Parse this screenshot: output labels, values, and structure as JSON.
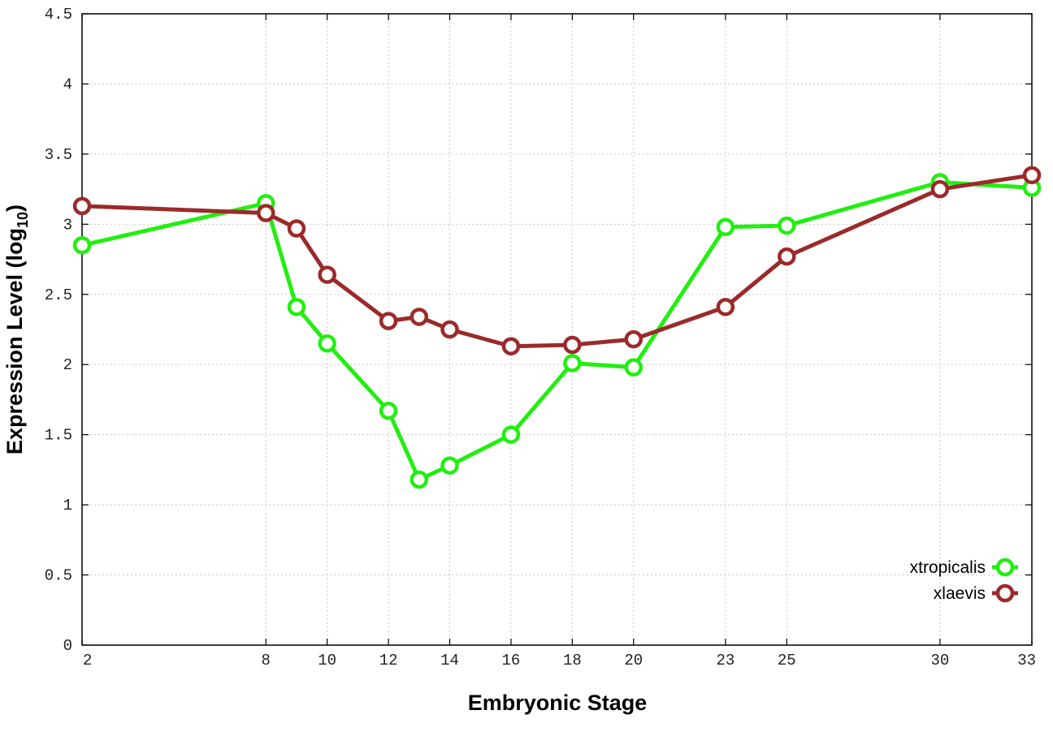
{
  "chart_data": {
    "type": "line",
    "xlabel": "Embryonic Stage",
    "ylabel_main": "Expression Level (log",
    "ylabel_sub": "10",
    "ylabel_close": ")",
    "ylim": [
      0,
      4.5
    ],
    "yticks": [
      0,
      0.5,
      1,
      1.5,
      2,
      2.5,
      3,
      3.5,
      4,
      4.5
    ],
    "ytick_labels": [
      "0",
      "0.5",
      "1",
      "1.5",
      "2",
      "2.5",
      "3",
      "3.5",
      "4",
      "4.5"
    ],
    "xlim": [
      2,
      33
    ],
    "xticks": [
      2,
      8,
      10,
      12,
      14,
      16,
      18,
      20,
      23,
      25,
      30,
      33
    ],
    "xtick_labels": [
      "2",
      "8",
      "10",
      "12",
      "14",
      "16",
      "18",
      "20",
      "23",
      "25",
      "30",
      "33"
    ],
    "grid": true,
    "legend_position": "bottom-right",
    "x": [
      2,
      8,
      9,
      10,
      12,
      13,
      14,
      16,
      18,
      20,
      23,
      25,
      30,
      33
    ],
    "series": [
      {
        "name": "xtropicalis",
        "color": "#22ee11",
        "values": [
          2.85,
          3.15,
          2.41,
          2.15,
          1.67,
          1.18,
          1.28,
          1.5,
          2.01,
          1.98,
          2.98,
          2.99,
          3.3,
          3.26
        ]
      },
      {
        "name": "xlaevis",
        "color": "#9b2a2a",
        "values": [
          3.13,
          3.08,
          2.97,
          2.64,
          2.31,
          2.34,
          2.25,
          2.13,
          2.14,
          2.18,
          2.41,
          2.77,
          3.25,
          3.35
        ]
      }
    ]
  }
}
